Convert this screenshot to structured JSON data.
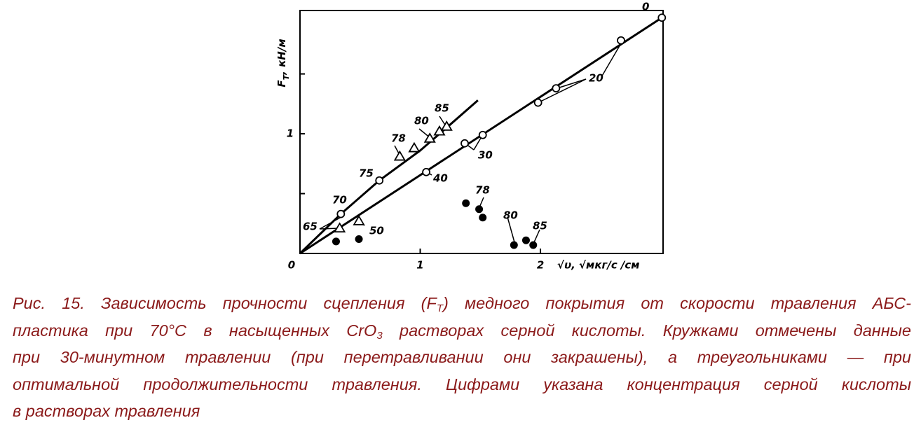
{
  "chart_data": {
    "type": "scatter",
    "x_label": "√υ, √мкг/с /см",
    "y_label": [
      {
        "text": "F"
      },
      {
        "sub": "T"
      },
      {
        "text": ", кН/м"
      }
    ],
    "xlim": [
      0,
      3.02
    ],
    "ylim": [
      0,
      2.03
    ],
    "xticks": [
      0,
      1,
      2
    ],
    "yticks": [
      1
    ],
    "yticks_minor": [
      0.5,
      1.5
    ],
    "grid": false,
    "series": [
      {
        "marker": "open-circle",
        "color": "#000000",
        "x": [
          0.34,
          0.66,
          1.05,
          1.37,
          1.52,
          1.98,
          2.13,
          2.67,
          3.01
        ],
        "values": [
          0.33,
          0.61,
          0.68,
          0.92,
          0.99,
          1.26,
          1.38,
          1.78,
          1.97
        ]
      },
      {
        "marker": "triangle",
        "color": "#000000",
        "x": [
          0.33,
          0.49,
          0.83,
          0.95,
          1.08,
          1.16,
          1.22
        ],
        "values": [
          0.21,
          0.27,
          0.81,
          0.88,
          0.96,
          1.02,
          1.06
        ]
      },
      {
        "marker": "filled-circle",
        "color": "#000000",
        "x": [
          0.3,
          0.49,
          1.38,
          1.49,
          1.52,
          1.78,
          1.88,
          1.94
        ],
        "values": [
          0.1,
          0.12,
          0.42,
          0.37,
          0.3,
          0.07,
          0.11,
          0.07
        ]
      }
    ],
    "lines": [
      {
        "color": "#000000",
        "x": [
          0,
          3.01
        ],
        "values": [
          0,
          1.97
        ]
      },
      {
        "color": "#000000",
        "x": [
          0,
          0.34,
          0.66,
          1.0,
          1.23,
          1.48
        ],
        "values": [
          0,
          0.33,
          0.61,
          0.86,
          1.06,
          1.28
        ]
      }
    ],
    "annotations": [
      "0",
      "20",
      "30",
      "40",
      "50",
      "65",
      "70",
      "75",
      "78",
      "80",
      "85",
      "78",
      "80",
      "85"
    ]
  },
  "caption_lines": [
    [
      {
        "text": "Рис. 15. Зависимость прочности сцепления (F"
      },
      {
        "sub": "T"
      },
      {
        "text": ") медного покрытия от скорости травления АБС-"
      }
    ],
    [
      {
        "text": "пластика при  70°С  в насыщенных CrO"
      },
      {
        "sub": "3"
      },
      {
        "text": " растворах серной кислоты. Кружками отмечены данные"
      }
    ],
    [
      {
        "text": "при 30-минутном травлении (при перетравливании они закрашены), а треугольниками — при"
      }
    ],
    [
      {
        "text": "оптимальной продолжительности травления. Цифрами указана концентрация серной кислоты"
      }
    ],
    [
      {
        "text": "в растворах травления"
      }
    ]
  ]
}
